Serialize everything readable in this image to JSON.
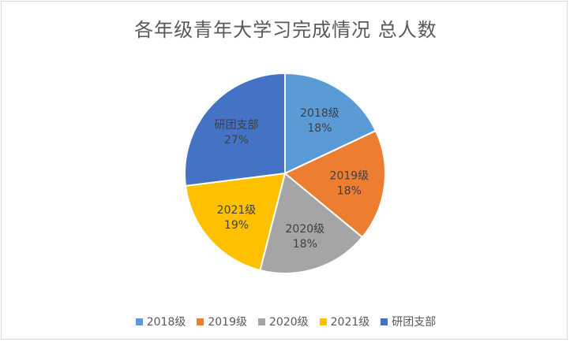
{
  "chart_data": {
    "type": "pie",
    "title": "各年级青年大学习完成情况 总人数",
    "categories": [
      "2018级",
      "2019级",
      "2020级",
      "2021级",
      "研团支部"
    ],
    "values": [
      18,
      18,
      18,
      19,
      27
    ],
    "labels": [
      "18%",
      "18%",
      "18%",
      "19%",
      "27%"
    ],
    "colors": [
      "#5b9bd5",
      "#ed7d31",
      "#a5a5a5",
      "#ffc000",
      "#4472c4"
    ],
    "legend_position": "bottom"
  }
}
